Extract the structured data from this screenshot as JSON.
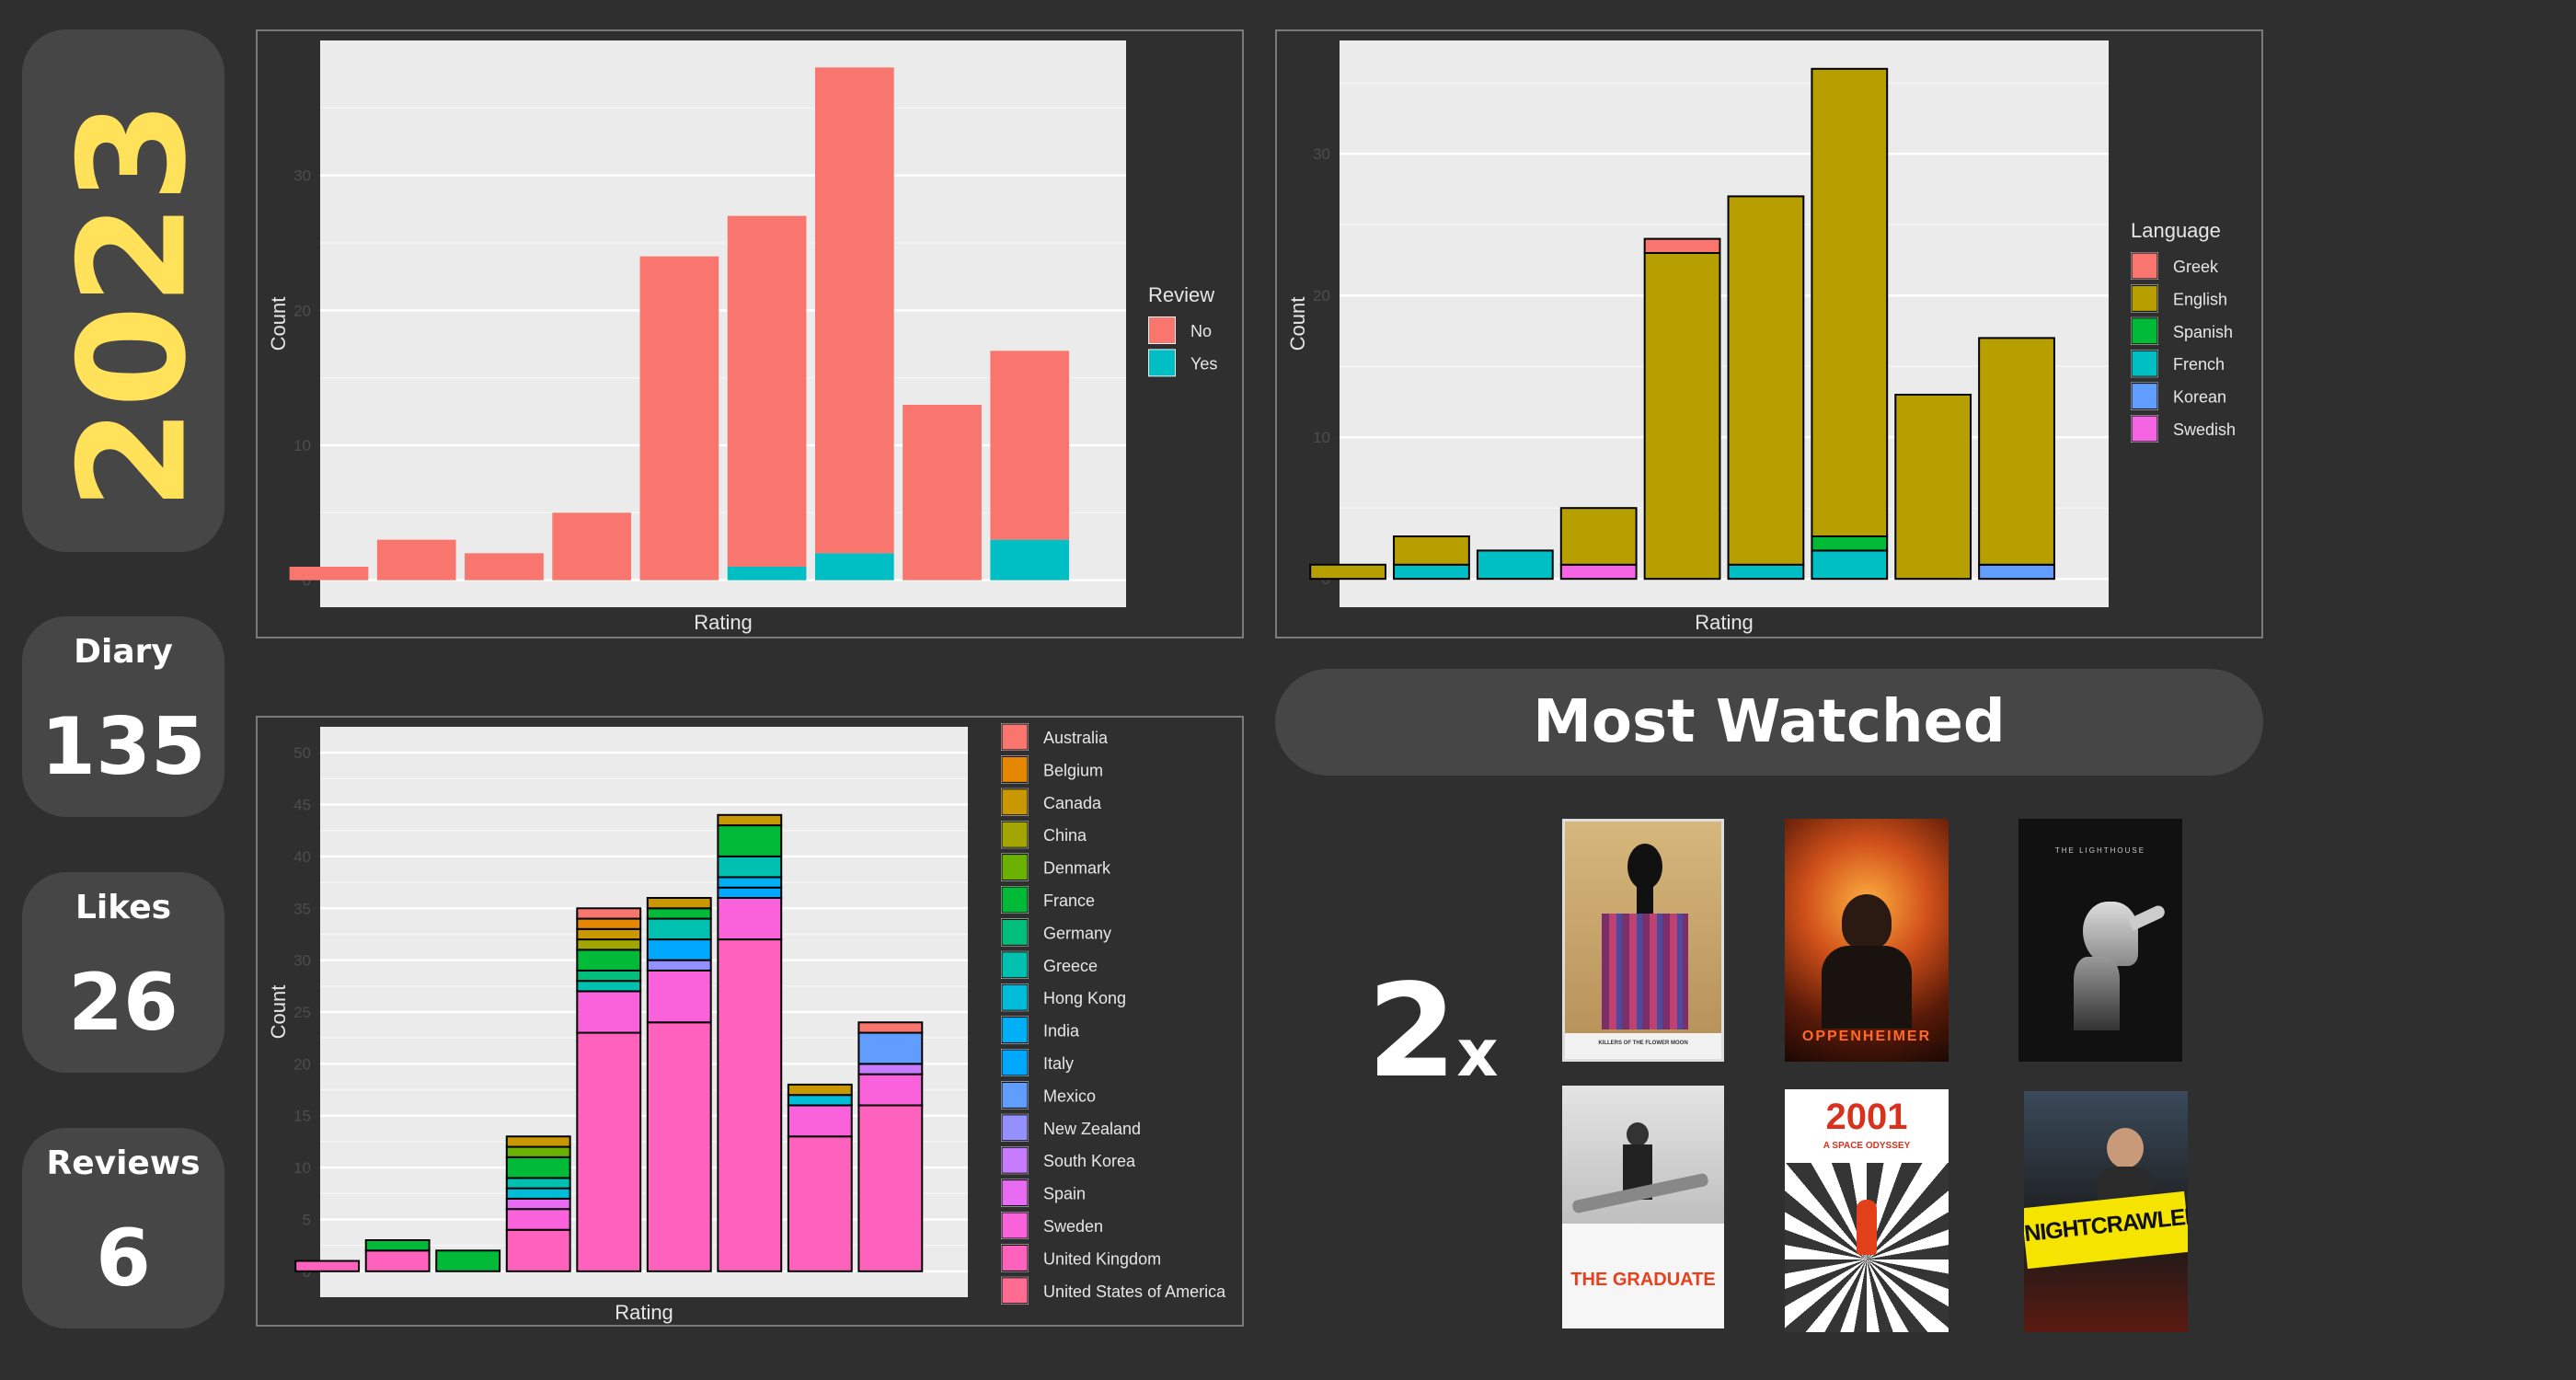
{
  "year": "2023",
  "stats": [
    {
      "label": "Diary",
      "value": "135"
    },
    {
      "label": "Likes",
      "value": "26"
    },
    {
      "label": "Reviews",
      "value": "6"
    }
  ],
  "most_watched": {
    "title": "Most Watched",
    "count": "2",
    "suffix": "x",
    "posters": [
      {
        "name": "killers-of-the-flower-moon-poster",
        "caption": "KILLERS OF THE FLOWER MOON"
      },
      {
        "name": "oppenheimer-poster",
        "caption": "OPPENHEIMER"
      },
      {
        "name": "the-lighthouse-poster",
        "caption": "THE LIGHTHOUSE"
      },
      {
        "name": "the-graduate-poster",
        "caption": "THE GRADUATE"
      },
      {
        "name": "2001-poster",
        "caption": "2001",
        "subcaption": "A SPACE ODYSSEY"
      },
      {
        "name": "nightcrawler-poster",
        "caption": "NIGHTCRAWLER"
      }
    ]
  },
  "chart_data": [
    {
      "type": "bar",
      "stacked": true,
      "xlabel": "Rating",
      "ylabel": "Count",
      "ylim": [
        -2,
        40
      ],
      "yticks": [
        0,
        10,
        20,
        30
      ],
      "legend_title": "Review",
      "legend_position": "right",
      "bar_outline": false,
      "series": [
        {
          "name": "No",
          "color": "#f8766d",
          "values": [
            1,
            3,
            2,
            5,
            24,
            26,
            36,
            13,
            14
          ]
        },
        {
          "name": "Yes",
          "color": "#00bfc4",
          "values": [
            0,
            0,
            0,
            0,
            0,
            1,
            2,
            0,
            3
          ]
        }
      ]
    },
    {
      "type": "bar",
      "stacked": true,
      "xlabel": "Rating",
      "ylabel": "Count",
      "ylim": [
        -2,
        38
      ],
      "yticks": [
        0,
        10,
        20,
        30
      ],
      "legend_title": "Language",
      "legend_position": "right",
      "bar_outline": true,
      "series": [
        {
          "name": "Greek",
          "color": "#f8766d",
          "values": [
            0,
            0,
            0,
            0,
            1,
            0,
            0,
            0,
            0
          ]
        },
        {
          "name": "English",
          "color": "#b79f00",
          "values": [
            1,
            2,
            0,
            4,
            23,
            26,
            33,
            13,
            16
          ]
        },
        {
          "name": "Spanish",
          "color": "#00ba38",
          "values": [
            0,
            0,
            0,
            0,
            0,
            0,
            1,
            0,
            0
          ]
        },
        {
          "name": "French",
          "color": "#00bfc4",
          "values": [
            0,
            1,
            2,
            0,
            0,
            1,
            2,
            0,
            0
          ]
        },
        {
          "name": "Korean",
          "color": "#619cff",
          "values": [
            0,
            0,
            0,
            0,
            0,
            0,
            0,
            0,
            1
          ]
        },
        {
          "name": "Swedish",
          "color": "#f564e3",
          "values": [
            0,
            0,
            0,
            1,
            0,
            0,
            0,
            0,
            0
          ]
        }
      ]
    },
    {
      "type": "bar",
      "stacked": true,
      "xlabel": "Rating",
      "ylabel": "Count",
      "ylim": [
        -2.5,
        52.5
      ],
      "yticks": [
        0,
        5,
        10,
        15,
        20,
        25,
        30,
        35,
        40,
        45,
        50
      ],
      "legend_title": "Country",
      "legend_position": "right",
      "bar_outline": true,
      "series": [
        {
          "name": "Australia",
          "color": "#f8766d",
          "values": [
            0,
            0,
            0,
            0,
            1,
            0,
            0,
            0,
            1
          ]
        },
        {
          "name": "Belgium",
          "color": "#e58700",
          "values": [
            0,
            0,
            0,
            0,
            1,
            0,
            0,
            0,
            0
          ]
        },
        {
          "name": "Canada",
          "color": "#c99800",
          "values": [
            0,
            0,
            0,
            1,
            1,
            1,
            1,
            1,
            0
          ]
        },
        {
          "name": "China",
          "color": "#a3a500",
          "values": [
            0,
            0,
            0,
            0,
            1,
            0,
            0,
            0,
            0
          ]
        },
        {
          "name": "Denmark",
          "color": "#6bb100",
          "values": [
            0,
            0,
            0,
            1,
            0,
            0,
            0,
            0,
            0
          ]
        },
        {
          "name": "France",
          "color": "#00ba38",
          "values": [
            0,
            1,
            2,
            2,
            2,
            1,
            3,
            0,
            0
          ]
        },
        {
          "name": "Germany",
          "color": "#00bf7d",
          "values": [
            0,
            0,
            0,
            0,
            1,
            0,
            0,
            0,
            0
          ]
        },
        {
          "name": "Greece",
          "color": "#00c0af",
          "values": [
            0,
            0,
            0,
            1,
            1,
            2,
            2,
            0,
            0
          ]
        },
        {
          "name": "Hong Kong",
          "color": "#00bcd8",
          "values": [
            0,
            0,
            0,
            1,
            0,
            0,
            0,
            1,
            0
          ]
        },
        {
          "name": "India",
          "color": "#00b0f6",
          "values": [
            0,
            0,
            0,
            0,
            0,
            0,
            1,
            0,
            0
          ]
        },
        {
          "name": "Italy",
          "color": "#00a9ff",
          "values": [
            0,
            0,
            0,
            0,
            0,
            2,
            1,
            0,
            0
          ]
        },
        {
          "name": "Mexico",
          "color": "#619cff",
          "values": [
            0,
            0,
            0,
            0,
            0,
            0,
            0,
            0,
            3
          ]
        },
        {
          "name": "New Zealand",
          "color": "#9590ff",
          "values": [
            0,
            0,
            0,
            0,
            0,
            1,
            0,
            0,
            0
          ]
        },
        {
          "name": "South Korea",
          "color": "#c77cff",
          "values": [
            0,
            0,
            0,
            0,
            0,
            0,
            0,
            0,
            1
          ]
        },
        {
          "name": "Spain",
          "color": "#e76bf3",
          "values": [
            0,
            0,
            0,
            1,
            0,
            0,
            0,
            0,
            0
          ]
        },
        {
          "name": "Sweden",
          "color": "#fa62db",
          "values": [
            0,
            0,
            0,
            2,
            4,
            5,
            4,
            3,
            3
          ]
        },
        {
          "name": "United Kingdom",
          "color": "#ff62bc",
          "values": [
            1,
            2,
            0,
            4,
            23,
            24,
            32,
            13,
            16
          ]
        },
        {
          "name": "United States of America",
          "color": "#ff6c91",
          "values": [
            0,
            0,
            0,
            0,
            0,
            0,
            0,
            0,
            0
          ]
        }
      ]
    }
  ]
}
